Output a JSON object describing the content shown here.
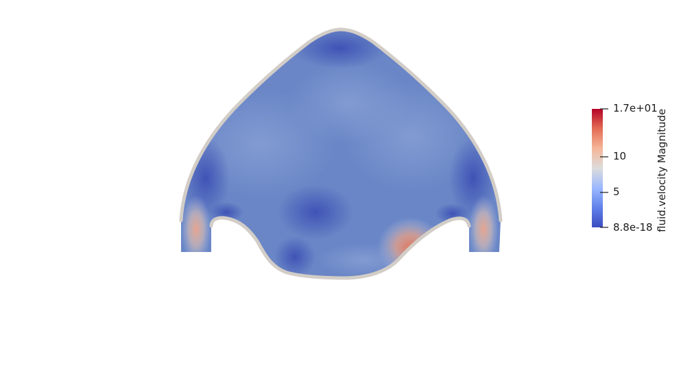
{
  "scene": {
    "background": "#ffffff",
    "wall_color": "#d2cdc7",
    "colormap": [
      "#3b4cc0",
      "#7b9ff9",
      "#c0d4f5",
      "#dddcdc",
      "#f2cbb7",
      "#ee8468",
      "#b40426"
    ]
  },
  "colorbar": {
    "title": "fluid.velocity Magnitude",
    "range": [
      8.8e-18,
      17
    ],
    "ticks": [
      {
        "value": 17,
        "label": "1.7e+01"
      },
      {
        "value": 10,
        "label": "10"
      },
      {
        "value": 5,
        "label": "5"
      },
      {
        "value": 8.8e-18,
        "label": "8.8e-18"
      }
    ]
  }
}
